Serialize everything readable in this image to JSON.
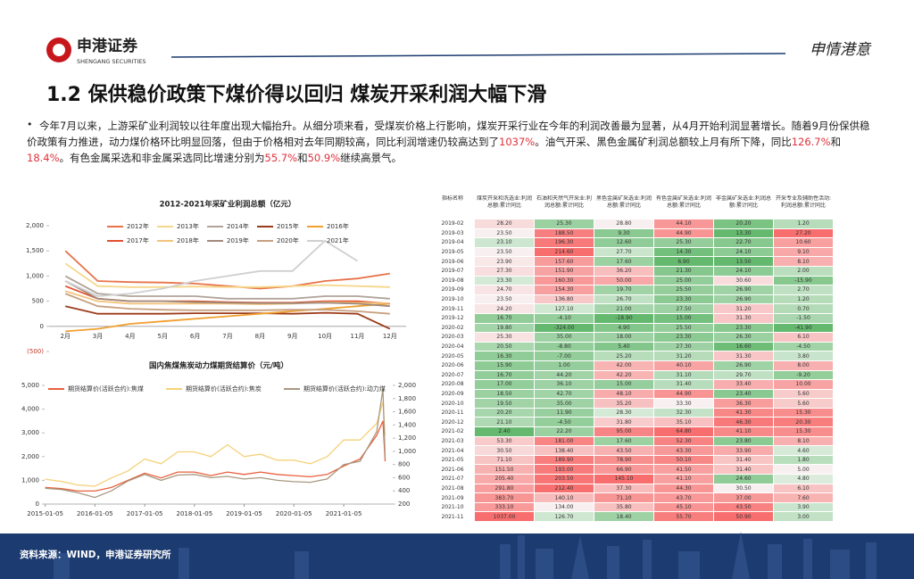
{
  "header": {
    "logo_cn": "申港证券",
    "logo_en": "SHENGANG SECURITIES",
    "slogan": "申情港意"
  },
  "title": "1.2 保供稳价政策下煤价得以回归 煤炭开采利润大幅下滑",
  "paragraph": [
    "今年7月以来，上游采矿业利润较以往年度出现大幅抬升。从细分项来看，受煤炭价格上行影响，煤炭开采行业在今年的利润改善最为显著，从4月开始利润显著增长。随着9月份保供稳价政策有力推进，动力煤价格环比明显回落，但由于价格相对去年同期较高，同比利润增速仍较高达到了",
    "1037%",
    "。油气开采、黑色金属矿利润总额较上月有所下降，同比",
    "126.7%",
    "和",
    "18.4%",
    "。有色金属采选和非金属采选同比增速分别为",
    "55.7%",
    "和",
    "50.9%",
    "继续高景气。"
  ],
  "chart_data": [
    {
      "type": "line",
      "title": "2012-2021年采矿业利润总额（亿元）",
      "categories": [
        "2月",
        "3月",
        "4月",
        "5月",
        "6月",
        "7月",
        "8月",
        "9月",
        "10月",
        "11月",
        "12月"
      ],
      "ylim": [
        -500,
        2000
      ],
      "yticks": [
        {
          "value": -500,
          "label": "(500)"
        },
        0,
        500,
        {
          "value": 1000,
          "label": "1,000"
        },
        {
          "value": 1500,
          "label": "1,500"
        },
        {
          "value": 2000,
          "label": "2,000"
        }
      ],
      "series": [
        {
          "name": "2012年",
          "color": "#e8734a",
          "values": [
            1500,
            900,
            880,
            870,
            850,
            800,
            750,
            800,
            900,
            950,
            1050
          ]
        },
        {
          "name": "2013年",
          "color": "#f5d78a",
          "values": [
            1250,
            800,
            780,
            780,
            790,
            780,
            780,
            800,
            820,
            800,
            780
          ]
        },
        {
          "name": "2014年",
          "color": "#b0a39a",
          "values": [
            1000,
            650,
            600,
            600,
            600,
            550,
            550,
            550,
            600,
            600,
            550
          ]
        },
        {
          "name": "2015年",
          "color": "#9c3b1a",
          "values": [
            400,
            250,
            250,
            250,
            260,
            260,
            260,
            250,
            270,
            250,
            -50
          ]
        },
        {
          "name": "2016年",
          "color": "#f0a030",
          "values": [
            -100,
            -50,
            50,
            100,
            150,
            200,
            250,
            300,
            350,
            400,
            450
          ]
        },
        {
          "name": "2017年",
          "color": "#e05030",
          "values": [
            800,
            550,
            500,
            500,
            500,
            480,
            470,
            470,
            500,
            500,
            450
          ]
        },
        {
          "name": "2018年",
          "color": "#f3c27a",
          "values": [
            700,
            500,
            450,
            450,
            450,
            450,
            440,
            450,
            480,
            470,
            460
          ]
        },
        {
          "name": "2019年",
          "color": "#a08a7a",
          "values": [
            900,
            550,
            500,
            500,
            480,
            470,
            460,
            460,
            470,
            450,
            400
          ]
        },
        {
          "name": "2020年",
          "color": "#c8a080",
          "values": [
            650,
            400,
            350,
            330,
            320,
            320,
            320,
            330,
            330,
            300,
            250
          ]
        },
        {
          "name": "2021年",
          "color": "#cfcfcf",
          "values": [
            900,
            600,
            650,
            750,
            900,
            1000,
            1100,
            1100,
            1700,
            1300,
            null
          ]
        }
      ]
    },
    {
      "type": "line",
      "title": "国内焦煤焦炭动力煤期货结算价（元/吨）",
      "x": [
        "2015-01-05",
        "2015-05-05",
        "2015-09-05",
        "2016-01-05",
        "2016-05-05",
        "2016-09-05",
        "2017-01-05",
        "2017-05-05",
        "2017-09-05",
        "2018-01-05",
        "2018-05-05",
        "2018-09-05",
        "2019-01-05",
        "2019-05-05",
        "2019-09-05",
        "2020-01-05",
        "2020-05-05",
        "2020-09-05",
        "2021-01-05",
        "2021-05-05",
        "2021-09-05",
        "2021-10-20",
        "2021-11-05"
      ],
      "xlim": [
        "2015-01-01",
        "2021-12-31"
      ],
      "xticks": [
        "2015-01-05",
        "2016-01-05",
        "2017-01-05",
        "2018-01-05",
        "2019-01-05",
        "2020-01-05",
        "2021-01-05"
      ],
      "ylim": [
        0,
        5000
      ],
      "yticks": [
        0,
        {
          "value": 1000,
          "label": "1,000"
        },
        {
          "value": 2000,
          "label": "2,000"
        },
        {
          "value": 3000,
          "label": "3,000"
        },
        {
          "value": 4000,
          "label": "4,000"
        },
        {
          "value": 5000,
          "label": "5,000"
        }
      ],
      "y2lim": [
        200,
        2000
      ],
      "y2ticks": [
        200,
        400,
        600,
        800,
        {
          "value": 1000,
          "label": "1,000"
        },
        {
          "value": 1200,
          "label": "1,200"
        },
        {
          "value": 1400,
          "label": "1,400"
        },
        {
          "value": 1600,
          "label": "1,600"
        },
        {
          "value": 1800,
          "label": "1,800"
        },
        {
          "value": 2000,
          "label": "2,000"
        }
      ],
      "series": [
        {
          "name": "期货结算价(活跃合约):焦煤",
          "color": "#e8603c",
          "values": [
            700,
            650,
            550,
            550,
            700,
            1000,
            1300,
            1100,
            1350,
            1350,
            1200,
            1350,
            1250,
            1350,
            1250,
            1200,
            1150,
            1250,
            1600,
            1900,
            2900,
            3500,
            1800
          ]
        },
        {
          "name": "期货结算价(活跃合约):焦炭",
          "color": "#f5d27a",
          "values": [
            1050,
            950,
            800,
            750,
            1100,
            1400,
            1900,
            1700,
            2200,
            2200,
            2000,
            2500,
            2000,
            2100,
            1850,
            1850,
            1700,
            2000,
            2700,
            2700,
            3400,
            4300,
            2900
          ]
        },
        {
          "name": "期货结算价(活跃合约):动力煤",
          "color": "#a89880",
          "axis": "y2",
          "values": [
            440,
            420,
            370,
            300,
            400,
            550,
            650,
            560,
            640,
            650,
            600,
            620,
            580,
            600,
            560,
            540,
            530,
            580,
            800,
            850,
            1300,
            1950,
            900
          ]
        }
      ]
    }
  ],
  "table": {
    "header": [
      "指标名称",
      "煤炭开采和洗选业:利润总额:累计同比",
      "石油和天然气开采业:利润总额:累计同比",
      "黑色金属矿采选业:利润总额:累计同比",
      "有色金属矿采选业:利润总额:累计同比",
      "非金属矿采选业:利润总额:累计同比",
      "开采专业及辅助性活动:利润总额:累计同比"
    ],
    "rows": [
      [
        "2019-02",
        "28.20",
        "25.30",
        "28.80",
        "44.10",
        "20.20",
        "1.20"
      ],
      [
        "2019-03",
        "23.50",
        "188.50",
        "9.30",
        "44.90",
        "13.30",
        "27.20"
      ],
      [
        "2019-04",
        "23.10",
        "196.30",
        "12.60",
        "25.30",
        "22.70",
        "10.60"
      ],
      [
        "2019-05",
        "23.50",
        "214.60",
        "27.70",
        "14.30",
        "24.10",
        "9.10"
      ],
      [
        "2019-06",
        "23.90",
        "157.60",
        "17.60",
        "6.90",
        "13.50",
        "8.10"
      ],
      [
        "2019-07",
        "27.30",
        "151.90",
        "36.20",
        "21.30",
        "24.10",
        "2.00"
      ],
      [
        "2019-08",
        "23.30",
        "160.30",
        "50.00",
        "25.00",
        "30.60",
        "-15.90"
      ],
      [
        "2019-09",
        "24.70",
        "154.30",
        "19.70",
        "25.50",
        "26.90",
        "2.70"
      ],
      [
        "2019-10",
        "23.50",
        "136.80",
        "26.70",
        "23.30",
        "26.90",
        "1.20"
      ],
      [
        "2019-11",
        "24.20",
        "127.10",
        "21.00",
        "27.50",
        "31.20",
        "0.70"
      ],
      [
        "2019-12",
        "16.70",
        "-4.10",
        "-18.90",
        "15.00",
        "31.30",
        "-1.50"
      ],
      [
        "2020-02",
        "19.80",
        "-324.00",
        "4.90",
        "25.50",
        "23.30",
        "-41.90"
      ],
      [
        "2020-03",
        "25.30",
        "35.00",
        "18.00",
        "23.30",
        "26.30",
        "6.10"
      ],
      [
        "2020-04",
        "20.50",
        "-8.80",
        "5.40",
        "27.30",
        "16.60",
        "-4.50"
      ],
      [
        "2020-05",
        "16.30",
        "-7.00",
        "25.20",
        "31.20",
        "31.30",
        "3.80"
      ],
      [
        "2020-06",
        "15.90",
        "1.00",
        "42.00",
        "40.10",
        "26.90",
        "8.00"
      ],
      [
        "2020-07",
        "16.70",
        "44.20",
        "42.20",
        "31.10",
        "29.70",
        "-9.20"
      ],
      [
        "2020-08",
        "17.00",
        "36.10",
        "15.00",
        "31.40",
        "33.40",
        "10.00"
      ],
      [
        "2020-09",
        "18.50",
        "42.70",
        "48.10",
        "44.90",
        "23.40",
        "5.60"
      ],
      [
        "2020-10",
        "19.50",
        "35.00",
        "35.20",
        "33.30",
        "36.30",
        "5.60"
      ],
      [
        "2020-11",
        "20.20",
        "11.90",
        "28.30",
        "32.30",
        "41.30",
        "15.30"
      ],
      [
        "2020-12",
        "21.10",
        "-4.50",
        "31.80",
        "35.10",
        "46.30",
        "20.30"
      ],
      [
        "2021-02",
        "2.40",
        "22.20",
        "95.00",
        "64.80",
        "41.10",
        "15.30"
      ],
      [
        "2021-03",
        "53.30",
        "181.00",
        "17.60",
        "52.30",
        "23.80",
        "8.10"
      ],
      [
        "2021-04",
        "30.50",
        "138.40",
        "43.50",
        "43.30",
        "33.90",
        "4.60"
      ],
      [
        "2021-05",
        "71.10",
        "189.90",
        "78.90",
        "50.10",
        "31.40",
        "1.80"
      ],
      [
        "2021-06",
        "151.50",
        "193.00",
        "66.90",
        "41.50",
        "31.40",
        "5.00"
      ],
      [
        "2021-07",
        "205.40",
        "203.50",
        "145.10",
        "41.10",
        "24.60",
        "4.80"
      ],
      [
        "2021-08",
        "291.80",
        "212.40",
        "37.30",
        "44.30",
        "30.50",
        "6.10"
      ],
      [
        "2021-09",
        "383.70",
        "140.10",
        "71.10",
        "43.70",
        "37.00",
        "7.60"
      ],
      [
        "2021-10",
        "333.10",
        "134.00",
        "35.80",
        "45.10",
        "43.50",
        "3.90"
      ],
      [
        "2021-11",
        "1037.00",
        "126.70",
        "18.40",
        "55.70",
        "50.90",
        "3.00"
      ]
    ]
  },
  "footer": {
    "source": "资料来源：WIND，申港证券研究所"
  }
}
